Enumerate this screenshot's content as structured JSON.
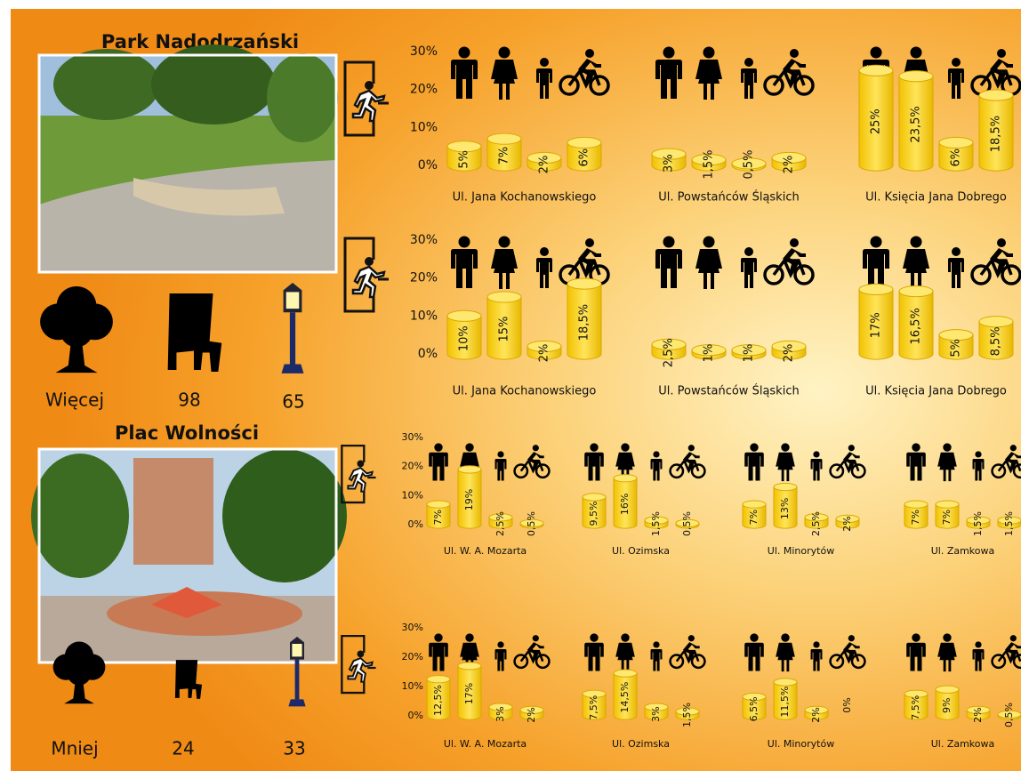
{
  "sections": [
    {
      "title": "Park Nadodrzański",
      "trees": "Więcej",
      "benches": 98,
      "lamps": 65,
      "rows": [
        {
          "ylim": [
            0,
            30
          ],
          "yticks": [
            {
              "value": 0,
              "label": "0%"
            },
            {
              "value": 10,
              "label": "10%"
            },
            {
              "value": 20,
              "label": "20%"
            },
            {
              "value": 30,
              "label": "30%"
            }
          ],
          "groups": [
            {
              "label": "Ul. Jana Kochanowskiego",
              "values": [
                5,
                7,
                2,
                6
              ],
              "value_labels": [
                "5%",
                "7%",
                "2%",
                "6%"
              ]
            },
            {
              "label": "Ul. Powstańców Śląskich",
              "values": [
                3,
                1.5,
                0.5,
                2
              ],
              "value_labels": [
                "3%",
                "1,5%",
                "0,5%",
                "2%"
              ]
            },
            {
              "label": "Ul. Księcia Jana Dobrego",
              "values": [
                25,
                23.5,
                6,
                18.5
              ],
              "value_labels": [
                "25%",
                "23,5%",
                "6%",
                "18,5%"
              ]
            }
          ]
        },
        {
          "ylim": [
            0,
            30
          ],
          "yticks": [
            {
              "value": 0,
              "label": "0%"
            },
            {
              "value": 10,
              "label": "10%"
            },
            {
              "value": 20,
              "label": "20%"
            },
            {
              "value": 30,
              "label": "30%"
            }
          ],
          "groups": [
            {
              "label": "Ul. Jana Kochanowskiego",
              "values": [
                10,
                15,
                2,
                18.5
              ],
              "value_labels": [
                "10%",
                "15%",
                "2%",
                "18,5%"
              ]
            },
            {
              "label": "Ul. Powstańców Śląskich",
              "values": [
                2.5,
                1,
                1,
                2
              ],
              "value_labels": [
                "2,5%",
                "1%",
                "1%",
                "2%"
              ]
            },
            {
              "label": "Ul. Księcia Jana Dobrego",
              "values": [
                17,
                16.5,
                5,
                8.5
              ],
              "value_labels": [
                "17%",
                "16,5%",
                "5%",
                "8,5%"
              ]
            }
          ]
        }
      ]
    },
    {
      "title": "Plac Wolności",
      "trees": "Mniej",
      "benches": 24,
      "lamps": 33,
      "rows": [
        {
          "ylim": [
            0,
            30
          ],
          "yticks": [
            {
              "value": 0,
              "label": "0%"
            },
            {
              "value": 10,
              "label": "10%"
            },
            {
              "value": 20,
              "label": "20%"
            },
            {
              "value": 30,
              "label": "30%"
            }
          ],
          "groups": [
            {
              "label": "Ul. W. A. Mozarta",
              "values": [
                7,
                19,
                2.5,
                0.5
              ],
              "value_labels": [
                "7%",
                "19%",
                "2,5%",
                "0,5%"
              ]
            },
            {
              "label": "Ul. Ozimska",
              "values": [
                9.5,
                16,
                1.5,
                0.5
              ],
              "value_labels": [
                "9,5%",
                "16%",
                "1,5%",
                "0,5%"
              ]
            },
            {
              "label": "Ul. Minorytów",
              "values": [
                7,
                13,
                2.5,
                2
              ],
              "value_labels": [
                "7%",
                "13%",
                "2,5%",
                "2%"
              ]
            },
            {
              "label": "Ul. Zamkowa",
              "values": [
                7,
                7,
                1.5,
                1.5
              ],
              "value_labels": [
                "7%",
                "7%",
                "1,5%",
                "1,5%"
              ]
            }
          ]
        },
        {
          "ylim": [
            0,
            30
          ],
          "yticks": [
            {
              "value": 0,
              "label": "0%"
            },
            {
              "value": 10,
              "label": "10%"
            },
            {
              "value": 20,
              "label": "20%"
            },
            {
              "value": 30,
              "label": "30%"
            }
          ],
          "groups": [
            {
              "label": "Ul. W. A. Mozarta",
              "values": [
                12.5,
                17,
                3,
                2
              ],
              "value_labels": [
                "12,5%",
                "17%",
                "3%",
                "2%"
              ]
            },
            {
              "label": "Ul. Ozimska",
              "values": [
                7.5,
                14.5,
                3,
                1.5
              ],
              "value_labels": [
                "7,5%",
                "14,5%",
                "3%",
                "1,5%"
              ]
            },
            {
              "label": "Ul. Minorytów",
              "values": [
                6.5,
                11.5,
                2,
                0
              ],
              "value_labels": [
                "6,5%",
                "11,5%",
                "2%",
                "0%"
              ]
            },
            {
              "label": "Ul. Zamkowa",
              "values": [
                7.5,
                9,
                2,
                0.5
              ],
              "value_labels": [
                "7,5%",
                "9%",
                "2%",
                "0,5%"
              ]
            }
          ]
        }
      ]
    }
  ]
}
